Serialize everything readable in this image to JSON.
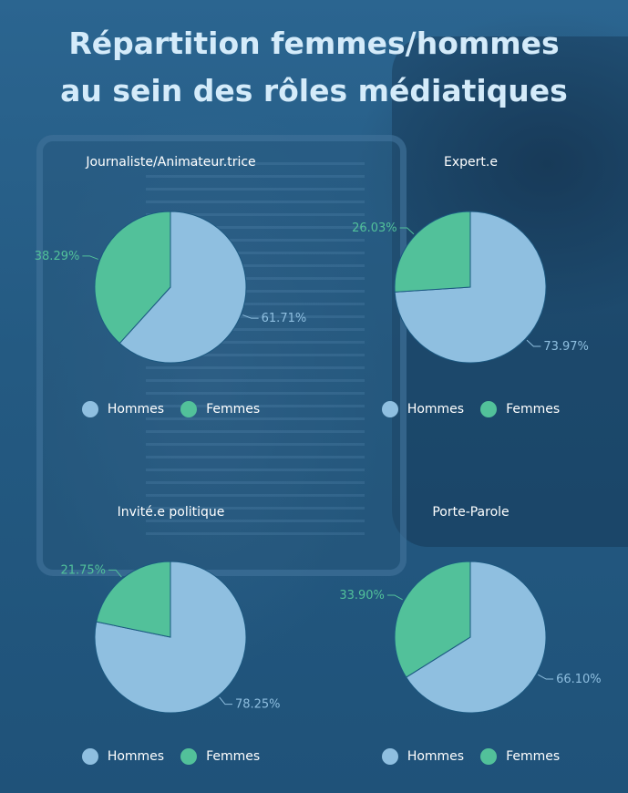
{
  "title_line1": "Répartition femmes/hommes",
  "title_line2": "au sein des rôles médiatiques",
  "colors": {
    "hommes": "#8fbfe0",
    "femmes": "#52c19a",
    "pie_stroke": "#1b5880"
  },
  "chart_data": [
    {
      "type": "pie",
      "title": "Journaliste/Animateur.trice",
      "labels": [
        "Hommes",
        "Femmes"
      ],
      "values": [
        61.71,
        38.29
      ],
      "value_labels": [
        "61.71%",
        "38.29%"
      ],
      "legend": "bottom"
    },
    {
      "type": "pie",
      "title": "Expert.e",
      "labels": [
        "Hommes",
        "Femmes"
      ],
      "values": [
        73.97,
        26.03
      ],
      "value_labels": [
        "73.97%",
        "26.03%"
      ],
      "legend": "bottom"
    },
    {
      "type": "pie",
      "title": "Invité.e politique",
      "labels": [
        "Hommes",
        "Femmes"
      ],
      "values": [
        78.25,
        21.75
      ],
      "value_labels": [
        "78.25%",
        "21.75%"
      ],
      "legend": "bottom"
    },
    {
      "type": "pie",
      "title": "Porte-Parole",
      "labels": [
        "Hommes",
        "Femmes"
      ],
      "values": [
        66.1,
        33.9
      ],
      "value_labels": [
        "66.10%",
        "33.90%"
      ],
      "legend": "bottom"
    }
  ]
}
